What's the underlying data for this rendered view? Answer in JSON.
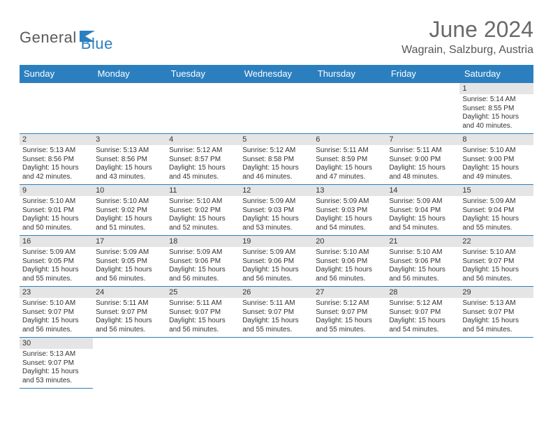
{
  "brand": {
    "name1": "General",
    "name2": "Blue"
  },
  "title": "June 2024",
  "location": "Wagrain, Salzburg, Austria",
  "colors": {
    "header_bg": "#2b7fbf",
    "daynum_bg": "#e5e5e5",
    "border": "#2b7fbf"
  },
  "weekdays": [
    "Sunday",
    "Monday",
    "Tuesday",
    "Wednesday",
    "Thursday",
    "Friday",
    "Saturday"
  ],
  "weeks": [
    [
      null,
      null,
      null,
      null,
      null,
      null,
      {
        "n": "1",
        "sr": "Sunrise: 5:14 AM",
        "ss": "Sunset: 8:55 PM",
        "d1": "Daylight: 15 hours",
        "d2": "and 40 minutes."
      }
    ],
    [
      {
        "n": "2",
        "sr": "Sunrise: 5:13 AM",
        "ss": "Sunset: 8:56 PM",
        "d1": "Daylight: 15 hours",
        "d2": "and 42 minutes."
      },
      {
        "n": "3",
        "sr": "Sunrise: 5:13 AM",
        "ss": "Sunset: 8:56 PM",
        "d1": "Daylight: 15 hours",
        "d2": "and 43 minutes."
      },
      {
        "n": "4",
        "sr": "Sunrise: 5:12 AM",
        "ss": "Sunset: 8:57 PM",
        "d1": "Daylight: 15 hours",
        "d2": "and 45 minutes."
      },
      {
        "n": "5",
        "sr": "Sunrise: 5:12 AM",
        "ss": "Sunset: 8:58 PM",
        "d1": "Daylight: 15 hours",
        "d2": "and 46 minutes."
      },
      {
        "n": "6",
        "sr": "Sunrise: 5:11 AM",
        "ss": "Sunset: 8:59 PM",
        "d1": "Daylight: 15 hours",
        "d2": "and 47 minutes."
      },
      {
        "n": "7",
        "sr": "Sunrise: 5:11 AM",
        "ss": "Sunset: 9:00 PM",
        "d1": "Daylight: 15 hours",
        "d2": "and 48 minutes."
      },
      {
        "n": "8",
        "sr": "Sunrise: 5:10 AM",
        "ss": "Sunset: 9:00 PM",
        "d1": "Daylight: 15 hours",
        "d2": "and 49 minutes."
      }
    ],
    [
      {
        "n": "9",
        "sr": "Sunrise: 5:10 AM",
        "ss": "Sunset: 9:01 PM",
        "d1": "Daylight: 15 hours",
        "d2": "and 50 minutes."
      },
      {
        "n": "10",
        "sr": "Sunrise: 5:10 AM",
        "ss": "Sunset: 9:02 PM",
        "d1": "Daylight: 15 hours",
        "d2": "and 51 minutes."
      },
      {
        "n": "11",
        "sr": "Sunrise: 5:10 AM",
        "ss": "Sunset: 9:02 PM",
        "d1": "Daylight: 15 hours",
        "d2": "and 52 minutes."
      },
      {
        "n": "12",
        "sr": "Sunrise: 5:09 AM",
        "ss": "Sunset: 9:03 PM",
        "d1": "Daylight: 15 hours",
        "d2": "and 53 minutes."
      },
      {
        "n": "13",
        "sr": "Sunrise: 5:09 AM",
        "ss": "Sunset: 9:03 PM",
        "d1": "Daylight: 15 hours",
        "d2": "and 54 minutes."
      },
      {
        "n": "14",
        "sr": "Sunrise: 5:09 AM",
        "ss": "Sunset: 9:04 PM",
        "d1": "Daylight: 15 hours",
        "d2": "and 54 minutes."
      },
      {
        "n": "15",
        "sr": "Sunrise: 5:09 AM",
        "ss": "Sunset: 9:04 PM",
        "d1": "Daylight: 15 hours",
        "d2": "and 55 minutes."
      }
    ],
    [
      {
        "n": "16",
        "sr": "Sunrise: 5:09 AM",
        "ss": "Sunset: 9:05 PM",
        "d1": "Daylight: 15 hours",
        "d2": "and 55 minutes."
      },
      {
        "n": "17",
        "sr": "Sunrise: 5:09 AM",
        "ss": "Sunset: 9:05 PM",
        "d1": "Daylight: 15 hours",
        "d2": "and 56 minutes."
      },
      {
        "n": "18",
        "sr": "Sunrise: 5:09 AM",
        "ss": "Sunset: 9:06 PM",
        "d1": "Daylight: 15 hours",
        "d2": "and 56 minutes."
      },
      {
        "n": "19",
        "sr": "Sunrise: 5:09 AM",
        "ss": "Sunset: 9:06 PM",
        "d1": "Daylight: 15 hours",
        "d2": "and 56 minutes."
      },
      {
        "n": "20",
        "sr": "Sunrise: 5:10 AM",
        "ss": "Sunset: 9:06 PM",
        "d1": "Daylight: 15 hours",
        "d2": "and 56 minutes."
      },
      {
        "n": "21",
        "sr": "Sunrise: 5:10 AM",
        "ss": "Sunset: 9:06 PM",
        "d1": "Daylight: 15 hours",
        "d2": "and 56 minutes."
      },
      {
        "n": "22",
        "sr": "Sunrise: 5:10 AM",
        "ss": "Sunset: 9:07 PM",
        "d1": "Daylight: 15 hours",
        "d2": "and 56 minutes."
      }
    ],
    [
      {
        "n": "23",
        "sr": "Sunrise: 5:10 AM",
        "ss": "Sunset: 9:07 PM",
        "d1": "Daylight: 15 hours",
        "d2": "and 56 minutes."
      },
      {
        "n": "24",
        "sr": "Sunrise: 5:11 AM",
        "ss": "Sunset: 9:07 PM",
        "d1": "Daylight: 15 hours",
        "d2": "and 56 minutes."
      },
      {
        "n": "25",
        "sr": "Sunrise: 5:11 AM",
        "ss": "Sunset: 9:07 PM",
        "d1": "Daylight: 15 hours",
        "d2": "and 56 minutes."
      },
      {
        "n": "26",
        "sr": "Sunrise: 5:11 AM",
        "ss": "Sunset: 9:07 PM",
        "d1": "Daylight: 15 hours",
        "d2": "and 55 minutes."
      },
      {
        "n": "27",
        "sr": "Sunrise: 5:12 AM",
        "ss": "Sunset: 9:07 PM",
        "d1": "Daylight: 15 hours",
        "d2": "and 55 minutes."
      },
      {
        "n": "28",
        "sr": "Sunrise: 5:12 AM",
        "ss": "Sunset: 9:07 PM",
        "d1": "Daylight: 15 hours",
        "d2": "and 54 minutes."
      },
      {
        "n": "29",
        "sr": "Sunrise: 5:13 AM",
        "ss": "Sunset: 9:07 PM",
        "d1": "Daylight: 15 hours",
        "d2": "and 54 minutes."
      }
    ],
    [
      {
        "n": "30",
        "sr": "Sunrise: 5:13 AM",
        "ss": "Sunset: 9:07 PM",
        "d1": "Daylight: 15 hours",
        "d2": "and 53 minutes."
      },
      null,
      null,
      null,
      null,
      null,
      null
    ]
  ]
}
